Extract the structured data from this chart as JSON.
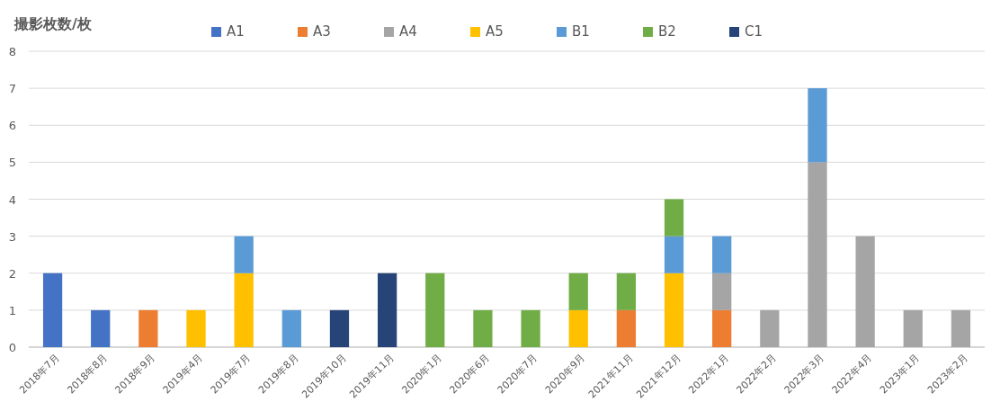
{
  "chart_data": {
    "type": "bar",
    "stacked": true,
    "ylabel": "撮影枚数/枚",
    "categories": [
      "2018年7月",
      "2018年8月",
      "2018年9月",
      "2019年4月",
      "2019年7月",
      "2019年8月",
      "2019年10月",
      "2019年11月",
      "2020年1月",
      "2020年6月",
      "2020年7月",
      "2020年9月",
      "2021年11月",
      "2021年12月",
      "2022年1月",
      "2022年2月",
      "2022年3月",
      "2022年4月",
      "2023年1月",
      "2023年2月"
    ],
    "series": [
      {
        "name": "A1",
        "color": "#4472c4",
        "values": [
          2,
          1,
          null,
          null,
          null,
          null,
          null,
          null,
          null,
          null,
          null,
          null,
          null,
          null,
          null,
          null,
          null,
          null,
          null,
          null
        ]
      },
      {
        "name": "A3",
        "color": "#ed7d31",
        "values": [
          null,
          null,
          1,
          null,
          null,
          null,
          null,
          null,
          null,
          null,
          null,
          null,
          1,
          null,
          1,
          null,
          null,
          null,
          null,
          null
        ]
      },
      {
        "name": "A4",
        "color": "#a5a5a5",
        "values": [
          null,
          null,
          null,
          null,
          null,
          null,
          null,
          null,
          null,
          null,
          null,
          null,
          null,
          null,
          1,
          1,
          5,
          3,
          1,
          1
        ]
      },
      {
        "name": "A5",
        "color": "#ffc000",
        "values": [
          null,
          null,
          null,
          1,
          2,
          null,
          null,
          null,
          null,
          null,
          null,
          1,
          null,
          2,
          null,
          null,
          null,
          null,
          null,
          null
        ]
      },
      {
        "name": "B1",
        "color": "#5b9bd5",
        "values": [
          null,
          null,
          null,
          null,
          1,
          1,
          null,
          null,
          null,
          null,
          null,
          null,
          null,
          1,
          1,
          null,
          2,
          null,
          null,
          null
        ]
      },
      {
        "name": "B2",
        "color": "#70ad47",
        "values": [
          null,
          null,
          null,
          null,
          null,
          null,
          null,
          null,
          2,
          1,
          1,
          1,
          1,
          1,
          null,
          null,
          null,
          null,
          null,
          null
        ]
      },
      {
        "name": "C1",
        "color": "#264478",
        "values": [
          null,
          null,
          null,
          null,
          null,
          null,
          1,
          2,
          null,
          null,
          null,
          null,
          null,
          null,
          null,
          null,
          null,
          null,
          null,
          null
        ]
      }
    ],
    "ylim": [
      0,
      8
    ],
    "yticks": [
      0,
      1,
      2,
      3,
      4,
      5,
      6,
      7,
      8
    ],
    "grid": "y",
    "legend": "top"
  }
}
